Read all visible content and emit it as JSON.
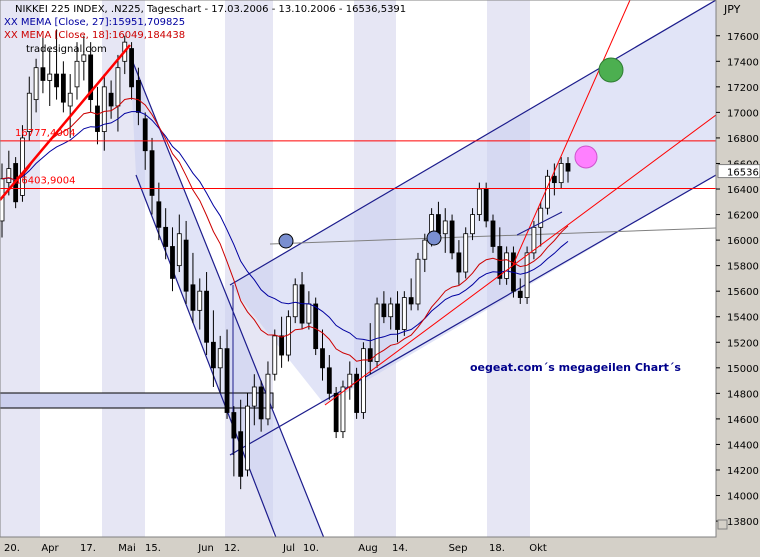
{
  "header": {
    "title": "NIKKEI 225 INDEX, .N225, Tageschart - 17.03.2006 - 13.10.2006 - 16536,5391",
    "indicator1": "XX MEMA [Close, 27]:15951,709825",
    "indicator2": "XX MEMA [Close, 18]:16049,184438",
    "watermark": "tradesignal.com"
  },
  "annotation": "oegeat.com´s megageilen Chart´s",
  "colors": {
    "background": "#ffffff",
    "band": "#e6e6f4",
    "up_candle": "#ffffff",
    "down_candle": "#000000",
    "mema27": "#0000a0",
    "mema18": "#cc0000",
    "channel_line": "#1c1c8c",
    "channel_fill": "#c8cdf0",
    "trend_red": "#ff0000",
    "circle_green": "#4caf50",
    "circle_pink": "#ff80ff",
    "circle_blue": "#7a8fd0",
    "support_box": "#ccd0ee"
  },
  "chart_data": {
    "type": "candlestick",
    "currency": "JPY",
    "ylim": [
      13550,
      17880
    ],
    "y_ticks": [
      13600,
      13800,
      14000,
      14200,
      14400,
      14600,
      14800,
      15000,
      15200,
      15400,
      15600,
      15800,
      16000,
      16200,
      16400,
      16600,
      16800,
      17000,
      17200,
      17400,
      17600
    ],
    "x_labels": [
      "20.",
      "Apr",
      "17.",
      "Mai",
      "15.",
      "Jun",
      "12.",
      "Jul",
      "10.",
      "Aug",
      "14.",
      "Sep",
      "18.",
      "Okt"
    ],
    "last_value_label": "16536,",
    "horizontal_levels": [
      {
        "label": "16777,4004",
        "value": 16777.4
      },
      {
        "label": "16403,9004",
        "value": 16403.9
      }
    ],
    "candles": [
      {
        "o": 16150,
        "h": 16600,
        "l": 16020,
        "c": 16480
      },
      {
        "o": 16450,
        "h": 16700,
        "l": 16350,
        "c": 16560
      },
      {
        "o": 16600,
        "h": 16650,
        "l": 16250,
        "c": 16300
      },
      {
        "o": 16350,
        "h": 16900,
        "l": 16300,
        "c": 16800
      },
      {
        "o": 16850,
        "h": 17280,
        "l": 16780,
        "c": 17150
      },
      {
        "o": 17100,
        "h": 17420,
        "l": 17000,
        "c": 17350
      },
      {
        "o": 17350,
        "h": 17600,
        "l": 17150,
        "c": 17250
      },
      {
        "o": 17250,
        "h": 17500,
        "l": 17050,
        "c": 17300
      },
      {
        "o": 17300,
        "h": 17650,
        "l": 17100,
        "c": 17200
      },
      {
        "o": 17300,
        "h": 17400,
        "l": 17000,
        "c": 17080
      },
      {
        "o": 17050,
        "h": 17300,
        "l": 16800,
        "c": 17150
      },
      {
        "o": 17200,
        "h": 17550,
        "l": 17100,
        "c": 17400
      },
      {
        "o": 17400,
        "h": 17600,
        "l": 17250,
        "c": 17450
      },
      {
        "o": 17450,
        "h": 17550,
        "l": 17000,
        "c": 17100
      },
      {
        "o": 17050,
        "h": 17200,
        "l": 16750,
        "c": 16850
      },
      {
        "o": 16850,
        "h": 17300,
        "l": 16700,
        "c": 17200
      },
      {
        "o": 17150,
        "h": 17250,
        "l": 16950,
        "c": 17050
      },
      {
        "o": 17050,
        "h": 17450,
        "l": 16850,
        "c": 17350
      },
      {
        "o": 17400,
        "h": 17600,
        "l": 17300,
        "c": 17550
      },
      {
        "o": 17500,
        "h": 17550,
        "l": 17100,
        "c": 17200
      },
      {
        "o": 17250,
        "h": 17350,
        "l": 16900,
        "c": 17000
      },
      {
        "o": 16950,
        "h": 17000,
        "l": 16550,
        "c": 16700
      },
      {
        "o": 16700,
        "h": 16800,
        "l": 16200,
        "c": 16350
      },
      {
        "o": 16300,
        "h": 16450,
        "l": 16000,
        "c": 16100
      },
      {
        "o": 16100,
        "h": 16250,
        "l": 15850,
        "c": 15950
      },
      {
        "o": 15950,
        "h": 16100,
        "l": 15600,
        "c": 15700
      },
      {
        "o": 15800,
        "h": 16200,
        "l": 15750,
        "c": 16050
      },
      {
        "o": 16000,
        "h": 16150,
        "l": 15500,
        "c": 15600
      },
      {
        "o": 15650,
        "h": 15900,
        "l": 15350,
        "c": 15450
      },
      {
        "o": 15450,
        "h": 15700,
        "l": 15300,
        "c": 15600
      },
      {
        "o": 15600,
        "h": 15750,
        "l": 15100,
        "c": 15200
      },
      {
        "o": 15200,
        "h": 15450,
        "l": 14850,
        "c": 15000
      },
      {
        "o": 15000,
        "h": 15250,
        "l": 14800,
        "c": 15150
      },
      {
        "o": 15150,
        "h": 15300,
        "l": 14600,
        "c": 14650
      },
      {
        "o": 14650,
        "h": 14700,
        "l": 14150,
        "c": 14450
      },
      {
        "o": 14500,
        "h": 14750,
        "l": 14050,
        "c": 14150
      },
      {
        "o": 14200,
        "h": 14800,
        "l": 14150,
        "c": 14700
      },
      {
        "o": 14700,
        "h": 14950,
        "l": 14550,
        "c": 14850
      },
      {
        "o": 14850,
        "h": 14900,
        "l": 14500,
        "c": 14600
      },
      {
        "o": 14600,
        "h": 15050,
        "l": 14550,
        "c": 14950
      },
      {
        "o": 14950,
        "h": 15300,
        "l": 14900,
        "c": 15250
      },
      {
        "o": 15250,
        "h": 15400,
        "l": 15000,
        "c": 15100
      },
      {
        "o": 15100,
        "h": 15450,
        "l": 15050,
        "c": 15400
      },
      {
        "o": 15400,
        "h": 15700,
        "l": 15350,
        "c": 15650
      },
      {
        "o": 15650,
        "h": 15750,
        "l": 15300,
        "c": 15350
      },
      {
        "o": 15350,
        "h": 15600,
        "l": 15300,
        "c": 15500
      },
      {
        "o": 15500,
        "h": 15550,
        "l": 15100,
        "c": 15150
      },
      {
        "o": 15150,
        "h": 15300,
        "l": 14900,
        "c": 15000
      },
      {
        "o": 15000,
        "h": 15100,
        "l": 14750,
        "c": 14800
      },
      {
        "o": 14800,
        "h": 14850,
        "l": 14450,
        "c": 14500
      },
      {
        "o": 14500,
        "h": 14900,
        "l": 14450,
        "c": 14850
      },
      {
        "o": 14850,
        "h": 15050,
        "l": 14750,
        "c": 14950
      },
      {
        "o": 14950,
        "h": 15000,
        "l": 14600,
        "c": 14650
      },
      {
        "o": 14650,
        "h": 15200,
        "l": 14600,
        "c": 15150
      },
      {
        "o": 15150,
        "h": 15350,
        "l": 14950,
        "c": 15050
      },
      {
        "o": 15050,
        "h": 15550,
        "l": 15000,
        "c": 15500
      },
      {
        "o": 15500,
        "h": 15600,
        "l": 15350,
        "c": 15400
      },
      {
        "o": 15400,
        "h": 15550,
        "l": 15300,
        "c": 15500
      },
      {
        "o": 15500,
        "h": 15600,
        "l": 15200,
        "c": 15300
      },
      {
        "o": 15300,
        "h": 15600,
        "l": 15250,
        "c": 15550
      },
      {
        "o": 15550,
        "h": 15700,
        "l": 15450,
        "c": 15500
      },
      {
        "o": 15500,
        "h": 15900,
        "l": 15450,
        "c": 15850
      },
      {
        "o": 15850,
        "h": 16050,
        "l": 15750,
        "c": 16000
      },
      {
        "o": 16000,
        "h": 16250,
        "l": 15950,
        "c": 16200
      },
      {
        "o": 16200,
        "h": 16300,
        "l": 16000,
        "c": 16050
      },
      {
        "o": 16050,
        "h": 16250,
        "l": 15900,
        "c": 16150
      },
      {
        "o": 16150,
        "h": 16200,
        "l": 15850,
        "c": 15900
      },
      {
        "o": 15900,
        "h": 16000,
        "l": 15650,
        "c": 15750
      },
      {
        "o": 15750,
        "h": 16100,
        "l": 15700,
        "c": 16050
      },
      {
        "o": 16050,
        "h": 16250,
        "l": 16000,
        "c": 16200
      },
      {
        "o": 16200,
        "h": 16450,
        "l": 16150,
        "c": 16400
      },
      {
        "o": 16400,
        "h": 16450,
        "l": 16100,
        "c": 16150
      },
      {
        "o": 16150,
        "h": 16200,
        "l": 15900,
        "c": 15950
      },
      {
        "o": 15950,
        "h": 16100,
        "l": 15650,
        "c": 15700
      },
      {
        "o": 15700,
        "h": 15950,
        "l": 15650,
        "c": 15900
      },
      {
        "o": 15900,
        "h": 15950,
        "l": 15550,
        "c": 15600
      },
      {
        "o": 15600,
        "h": 15700,
        "l": 15500,
        "c": 15550
      },
      {
        "o": 15550,
        "h": 15950,
        "l": 15500,
        "c": 15900
      },
      {
        "o": 15900,
        "h": 16150,
        "l": 15850,
        "c": 16100
      },
      {
        "o": 16100,
        "h": 16300,
        "l": 15950,
        "c": 16250
      },
      {
        "o": 16250,
        "h": 16550,
        "l": 16200,
        "c": 16500
      },
      {
        "o": 16500,
        "h": 16600,
        "l": 16350,
        "c": 16450
      },
      {
        "o": 16450,
        "h": 16650,
        "l": 16400,
        "c": 16600
      },
      {
        "o": 16600,
        "h": 16650,
        "l": 16450,
        "c": 16540
      }
    ]
  }
}
